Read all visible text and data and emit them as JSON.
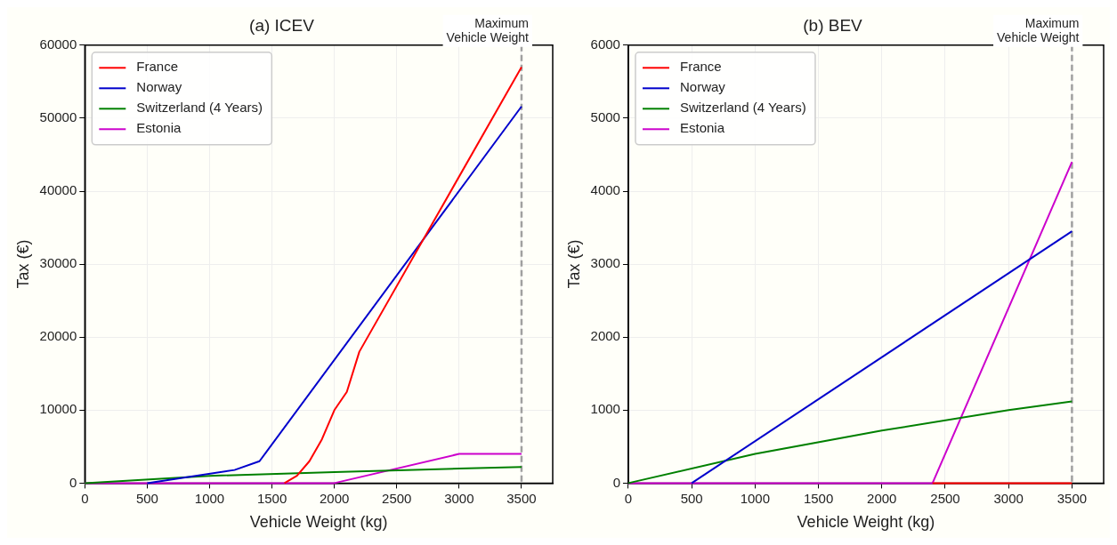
{
  "chart_data": [
    {
      "type": "line",
      "title": "(a) ICEV",
      "xlabel": "Vehicle Weight (kg)",
      "ylabel": "Tax (€)",
      "xlim": [
        0,
        3750
      ],
      "xticks": [
        0,
        500,
        1000,
        1500,
        2000,
        2500,
        3000,
        3500
      ],
      "ylim": [
        0,
        60000
      ],
      "yticks": [
        0,
        10000,
        20000,
        30000,
        40000,
        50000,
        60000
      ],
      "grid": true,
      "legend": "top left",
      "marker": "none",
      "line_style": "solid",
      "series": [
        {
          "name": "France",
          "color": "#ff0000",
          "x": [
            1600,
            1700,
            1800,
            1900,
            2000,
            2100,
            2200,
            3500
          ],
          "values": [
            0,
            1000,
            3000,
            6000,
            10000,
            12500,
            18000,
            57000
          ]
        },
        {
          "name": "Norway",
          "color": "#0000cc",
          "x": [
            500,
            1200,
            1400,
            3500
          ],
          "values": [
            0,
            1800,
            3000,
            51600
          ]
        },
        {
          "name": "Switzerland (4 Years)",
          "color": "#008000",
          "x": [
            0,
            1000,
            2000,
            3000,
            3500
          ],
          "values": [
            0,
            1000,
            1500,
            2000,
            2200
          ]
        },
        {
          "name": "Estonia",
          "color": "#cc00cc",
          "x": [
            0,
            2000,
            3000,
            3500
          ],
          "values": [
            0,
            0,
            4000,
            4000
          ]
        }
      ],
      "ref_lines": [
        {
          "axis": "x",
          "value": 3500,
          "label": "Maximum Vehicle Weight",
          "color": "#a0a0a0",
          "line_style": "dashed"
        }
      ]
    },
    {
      "type": "line",
      "title": "(b) BEV",
      "xlabel": "Vehicle Weight (kg)",
      "ylabel": "Tax (€)",
      "xlim": [
        0,
        3750
      ],
      "xticks": [
        0,
        500,
        1000,
        1500,
        2000,
        2500,
        3000,
        3500
      ],
      "ylim": [
        0,
        6000
      ],
      "yticks": [
        0,
        1000,
        2000,
        3000,
        4000,
        5000,
        6000
      ],
      "grid": true,
      "legend": "top left",
      "marker": "none",
      "line_style": "solid",
      "series": [
        {
          "name": "France",
          "color": "#ff0000",
          "x": [
            2400,
            3500
          ],
          "values": [
            0,
            0
          ]
        },
        {
          "name": "Norway",
          "color": "#0000cc",
          "x": [
            500,
            3500
          ],
          "values": [
            0,
            3450
          ]
        },
        {
          "name": "Switzerland (4 Years)",
          "color": "#008000",
          "x": [
            0,
            1000,
            2000,
            3000,
            3500
          ],
          "values": [
            0,
            400,
            720,
            1000,
            1120
          ]
        },
        {
          "name": "Estonia",
          "color": "#cc00cc",
          "x": [
            0,
            2400,
            3500
          ],
          "values": [
            0,
            0,
            4400
          ]
        }
      ],
      "ref_lines": [
        {
          "axis": "x",
          "value": 3500,
          "label": "Maximum Vehicle Weight",
          "color": "#a0a0a0",
          "line_style": "dashed"
        }
      ]
    }
  ]
}
